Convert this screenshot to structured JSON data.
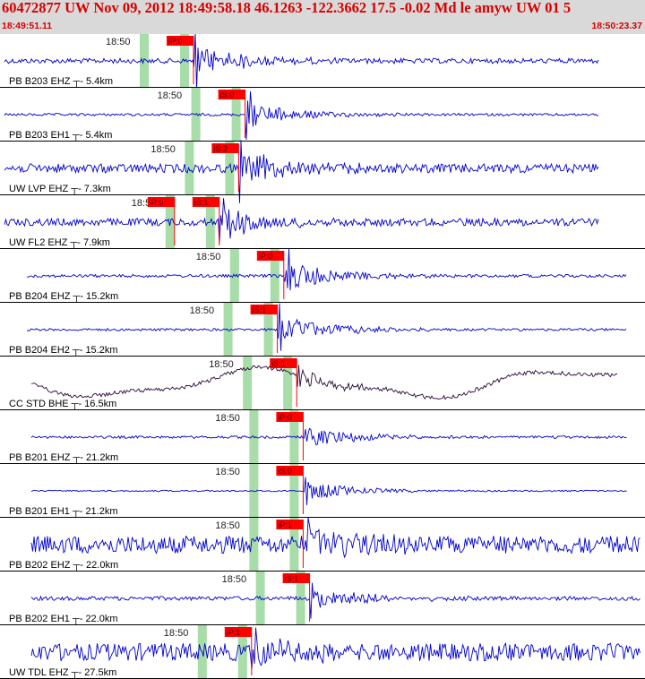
{
  "header": {
    "title": "60472877 UW Nov 09, 2012 18:49:58.18    46.1263 -122.3662 17.5 -0.02 Md le amyw UW 01    5",
    "start_time": "18:49:51.11",
    "end_time": "18:50:23.37"
  },
  "colors": {
    "header_bg": "#d9d9d9",
    "header_text": "#d80000",
    "trace": "#0000cc",
    "trace_alt": "#2a0a3a",
    "pick_box": "#ff0000",
    "pick_window": "#a8dca8",
    "separator": "#000000"
  },
  "chart_data": {
    "type": "line",
    "title": "60472877 UW Nov 09, 2012 18:49:58.18    46.1263 -122.3662 17.5 -0.02 Md le amyw UW 01    5",
    "time_range": [
      "18:49:51.11",
      "18:50:23.37"
    ],
    "minute_tick_label": "18:50",
    "series": [
      {
        "name": "PB B203 EHZ",
        "distance": "5.4km",
        "label": "PB B203 EHZ ┬- 5.4km",
        "pick": "iP:0",
        "style": "impulsive",
        "amp": 0.65,
        "noise": 0.1,
        "onset": 0.3,
        "long_period": false
      },
      {
        "name": "PB B203 EH1",
        "distance": "5.4km",
        "label": "PB B203 EH1 ┬- 5.4km",
        "pick": "iS:0",
        "style": "spike",
        "amp": 0.55,
        "noise": 0.05,
        "onset": 0.38,
        "long_period": false
      },
      {
        "name": "UW LVP EHZ",
        "distance": "7.3km",
        "label": "UW LVP EHZ ┬- 7.3km",
        "pick": "iS:2",
        "style": "impulsive",
        "amp": 0.7,
        "noise": 0.18,
        "onset": 0.37,
        "long_period": false
      },
      {
        "name": "UW FL2 EHZ",
        "distance": "7.9km",
        "label": "UW FL2 EHZ ┬- 7.9km",
        "pick": "iS:1",
        "pick2": "iP:0",
        "style": "impulsive",
        "amp": 0.65,
        "noise": 0.15,
        "onset": 0.34,
        "long_period": false
      },
      {
        "name": "PB B204 EHZ",
        "distance": "15.2km",
        "label": "PB B204 EHZ ┬- 15.2km",
        "pick": "iP:0",
        "style": "impulsive",
        "amp": 0.7,
        "noise": 0.06,
        "onset": 0.44,
        "long_period": false
      },
      {
        "name": "PB B204 EH2",
        "distance": "15.2km",
        "label": "PB B204 EH2 ┬- 15.2km",
        "pick": "iS:1",
        "style": "spike",
        "amp": 0.6,
        "noise": 0.05,
        "onset": 0.43,
        "long_period": false
      },
      {
        "name": "CC STD BHE",
        "distance": "16.5km",
        "label": "CC STD BHE ┬- 16.5km",
        "pick": "iS:1",
        "style": "longperiod",
        "amp": 0.35,
        "noise": 0.08,
        "onset": 0.46,
        "long_period": true
      },
      {
        "name": "PB B201 EHZ",
        "distance": "21.2km",
        "label": "PB B201 EHZ ┬- 21.2km",
        "pick": "iP:0",
        "style": "impulsive",
        "amp": 0.45,
        "noise": 0.05,
        "onset": 0.47,
        "long_period": false
      },
      {
        "name": "PB B201 EH1",
        "distance": "21.2km",
        "label": "PB B201 EH1 ┬- 21.2km",
        "pick": "iS:0",
        "style": "spike",
        "amp": 0.4,
        "noise": 0.03,
        "onset": 0.47,
        "long_period": false
      },
      {
        "name": "PB B202 EHZ",
        "distance": "22.0km",
        "label": "PB B202 EHZ ┬- 22.0km",
        "pick": "iP:1",
        "style": "impulsive",
        "amp": 0.65,
        "noise": 0.35,
        "onset": 0.47,
        "long_period": false
      },
      {
        "name": "PB B202 EH1",
        "distance": "22.0km",
        "label": "PB B202 EH1 ┬- 22.0km",
        "pick": "iS:1",
        "style": "spike",
        "amp": 0.55,
        "noise": 0.08,
        "onset": 0.48,
        "long_period": false
      },
      {
        "name": "UW TDL EHZ",
        "distance": "27.5km",
        "label": "UW TDL EHZ ┬- 27.5km",
        "pick": "iP:1",
        "style": "impulsive",
        "amp": 0.6,
        "noise": 0.35,
        "onset": 0.39,
        "long_period": false
      }
    ]
  }
}
